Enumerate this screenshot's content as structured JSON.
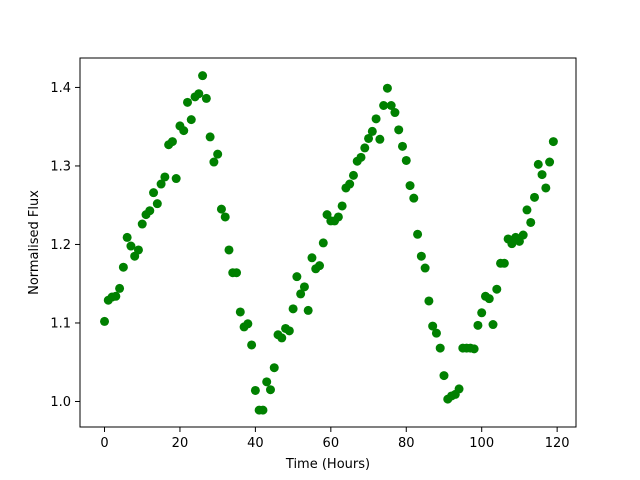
{
  "chart_data": {
    "type": "scatter",
    "xlabel": "Time (Hours)",
    "ylabel": "Normalised Flux",
    "xlim": [
      -6.5,
      125
    ],
    "ylim": [
      0.9675,
      1.4375
    ],
    "xticks": [
      0,
      20,
      40,
      60,
      80,
      100,
      120
    ],
    "yticks": [
      1.0,
      1.1,
      1.2,
      1.3,
      1.4
    ],
    "ytick_labels": [
      "1.0",
      "1.1",
      "1.2",
      "1.3",
      "1.4"
    ],
    "grid": false,
    "marker_color": "#008000",
    "series": [
      {
        "x": [
          0,
          1,
          2,
          3,
          4,
          5,
          6,
          7,
          8,
          9,
          10,
          11,
          12,
          13,
          14,
          15,
          16,
          17,
          18,
          19,
          20,
          21,
          22,
          23,
          24,
          25,
          26,
          27,
          28,
          29,
          30,
          31,
          32,
          33,
          34,
          35,
          36,
          37,
          38,
          39,
          40,
          41,
          42,
          43,
          44,
          45,
          46,
          47,
          48,
          49,
          50,
          51,
          52,
          53,
          54,
          55,
          56,
          57,
          58,
          59,
          60,
          61,
          62,
          63,
          64,
          65,
          66,
          67,
          68,
          69,
          70,
          71,
          72,
          73,
          74,
          75,
          76,
          77,
          78,
          79,
          80,
          81,
          82,
          83,
          84,
          85,
          86,
          87,
          88,
          89,
          90,
          91,
          92,
          93,
          94,
          95,
          96,
          97,
          98,
          99,
          100,
          101,
          102,
          103,
          104,
          105,
          106,
          107,
          108,
          109,
          110,
          111,
          112,
          113,
          114,
          115,
          116,
          117,
          118,
          119
        ],
        "y": [
          1.102,
          1.129,
          1.133,
          1.134,
          1.144,
          1.171,
          1.209,
          1.198,
          1.185,
          1.193,
          1.226,
          1.238,
          1.243,
          1.266,
          1.252,
          1.277,
          1.286,
          1.327,
          1.331,
          1.284,
          1.351,
          1.345,
          1.381,
          1.359,
          1.388,
          1.392,
          1.415,
          1.386,
          1.337,
          1.305,
          1.315,
          1.245,
          1.235,
          1.193,
          1.164,
          1.164,
          1.114,
          1.095,
          1.099,
          1.072,
          1.014,
          0.989,
          0.989,
          1.025,
          1.015,
          1.043,
          1.085,
          1.081,
          1.093,
          1.09,
          1.118,
          1.159,
          1.137,
          1.146,
          1.116,
          1.183,
          1.169,
          1.173,
          1.202,
          1.238,
          1.23,
          1.23,
          1.235,
          1.249,
          1.272,
          1.277,
          1.288,
          1.306,
          1.311,
          1.323,
          1.335,
          1.344,
          1.36,
          1.334,
          1.377,
          1.399,
          1.377,
          1.368,
          1.346,
          1.325,
          1.307,
          1.275,
          1.259,
          1.213,
          1.185,
          1.17,
          1.128,
          1.096,
          1.087,
          1.068,
          1.033,
          1.003,
          1.007,
          1.009,
          1.016,
          1.068,
          1.068,
          1.068,
          1.067,
          1.097,
          1.113,
          1.134,
          1.131,
          1.098,
          1.143,
          1.176,
          1.176,
          1.207,
          1.201,
          1.209,
          1.204,
          1.212,
          1.244,
          1.228,
          1.26,
          1.302,
          1.289,
          1.272,
          1.305,
          1.331
        ]
      }
    ]
  }
}
